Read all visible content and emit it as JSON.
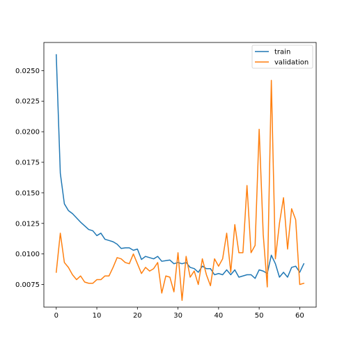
{
  "chart_data": {
    "type": "line",
    "title": "",
    "xlabel": "",
    "ylabel": "",
    "xlim": [
      -3.05,
      64.05
    ],
    "ylim": [
      0.00565,
      0.0273
    ],
    "xticks": [
      0,
      10,
      20,
      30,
      40,
      50,
      60
    ],
    "xtick_labels": [
      "0",
      "10",
      "20",
      "30",
      "40",
      "50",
      "60"
    ],
    "yticks": [
      0.0075,
      0.01,
      0.0125,
      0.015,
      0.0175,
      0.02,
      0.0225,
      0.025
    ],
    "ytick_labels": [
      "0.0075",
      "0.0100",
      "0.0125",
      "0.0150",
      "0.0175",
      "0.0200",
      "0.0225",
      "0.0250"
    ],
    "grid": false,
    "legend_position": "top-right",
    "x": [
      0,
      1,
      2,
      3,
      4,
      5,
      6,
      7,
      8,
      9,
      10,
      11,
      12,
      13,
      14,
      15,
      16,
      17,
      18,
      19,
      20,
      21,
      22,
      23,
      24,
      25,
      26,
      27,
      28,
      29,
      30,
      31,
      32,
      33,
      34,
      35,
      36,
      37,
      38,
      39,
      40,
      41,
      42,
      43,
      44,
      45,
      46,
      47,
      48,
      49,
      50,
      51,
      52,
      53,
      54,
      55,
      56,
      57,
      58,
      59,
      60,
      61
    ],
    "series": [
      {
        "name": "train",
        "color": "#1f77b4",
        "values": [
          0.0263,
          0.0166,
          0.0141,
          0.01355,
          0.0133,
          0.01295,
          0.0126,
          0.0123,
          0.012,
          0.0119,
          0.0115,
          0.0117,
          0.0112,
          0.0111,
          0.011,
          0.0108,
          0.01045,
          0.0105,
          0.0105,
          0.0103,
          0.0104,
          0.00955,
          0.0098,
          0.0097,
          0.0096,
          0.0098,
          0.0094,
          0.00945,
          0.0095,
          0.0092,
          0.0093,
          0.0092,
          0.0093,
          0.0089,
          0.0088,
          0.0085,
          0.009,
          0.0088,
          0.0088,
          0.0083,
          0.0084,
          0.0083,
          0.0087,
          0.0083,
          0.0087,
          0.0081,
          0.0082,
          0.0083,
          0.0083,
          0.008,
          0.0087,
          0.0086,
          0.0084,
          0.0099,
          0.0092,
          0.0081,
          0.0085,
          0.0081,
          0.0089,
          0.009,
          0.0085,
          0.0092
        ]
      },
      {
        "name": "validation",
        "color": "#ff7f0e",
        "values": [
          0.0085,
          0.0117,
          0.0093,
          0.0089,
          0.0083,
          0.0079,
          0.0082,
          0.0077,
          0.0076,
          0.0076,
          0.0079,
          0.0079,
          0.0082,
          0.0082,
          0.0089,
          0.0097,
          0.0096,
          0.0093,
          0.0092,
          0.01,
          0.0092,
          0.0084,
          0.0089,
          0.0086,
          0.0088,
          0.0093,
          0.0068,
          0.0082,
          0.0081,
          0.0069,
          0.0101,
          0.0062,
          0.0098,
          0.0081,
          0.0086,
          0.0075,
          0.0096,
          0.0083,
          0.0074,
          0.0096,
          0.009,
          0.0096,
          0.0117,
          0.0085,
          0.0124,
          0.0101,
          0.0101,
          0.0156,
          0.0101,
          0.0107,
          0.0202,
          0.0116,
          0.0073,
          0.0242,
          0.0096,
          0.0125,
          0.0146,
          0.0104,
          0.0137,
          0.0128,
          0.0075,
          0.0076
        ]
      }
    ]
  }
}
